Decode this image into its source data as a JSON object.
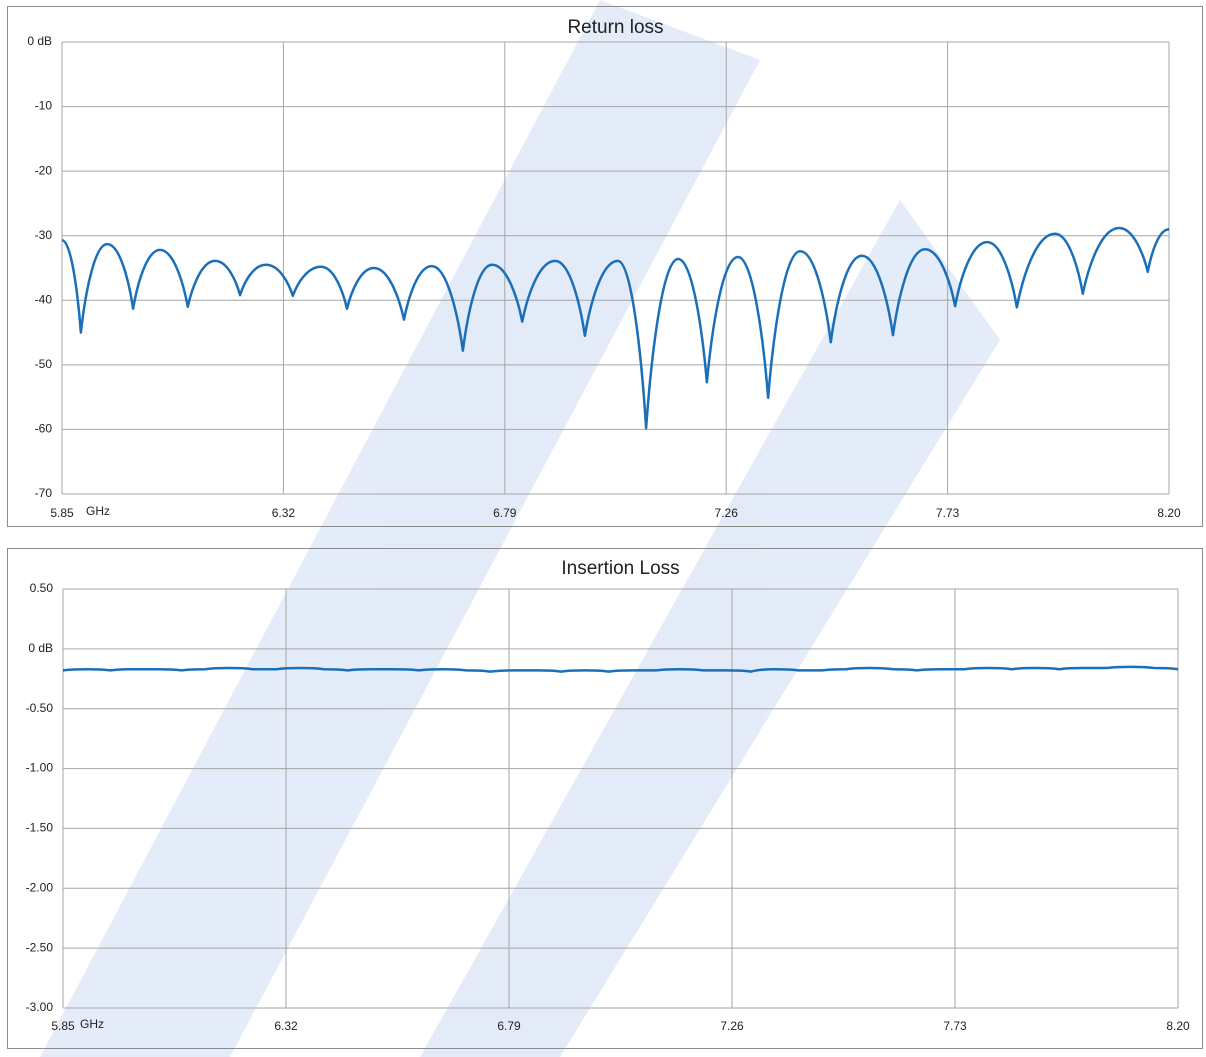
{
  "chart_data": [
    {
      "type": "line",
      "title": "Return loss",
      "x_label": "GHz",
      "color": "#1a6fb8",
      "grid": true,
      "xlim": [
        5.85,
        8.2
      ],
      "xticks": [
        5.85,
        6.32,
        6.79,
        7.26,
        7.73,
        {
          "value": 8.2,
          "label": "8.20"
        }
      ],
      "ylim": [
        -70,
        0
      ],
      "yticks": [
        {
          "value": 0,
          "label": "0 dB"
        },
        -10,
        -20,
        -30,
        -40,
        -50,
        -60,
        -70
      ],
      "x": [
        5.85,
        5.89,
        5.946,
        6.001,
        6.058,
        6.117,
        6.175,
        6.228,
        6.283,
        6.34,
        6.4,
        6.455,
        6.512,
        6.576,
        6.635,
        6.701,
        6.763,
        6.827,
        6.897,
        6.96,
        7.03,
        7.09,
        7.158,
        7.219,
        7.285,
        7.349,
        7.417,
        7.482,
        7.548,
        7.614,
        7.682,
        7.746,
        7.814,
        7.877,
        7.958,
        8.017,
        8.094,
        8.155,
        8.2
      ],
      "values": [
        -30.7,
        -45,
        -31.3,
        -41.3,
        -32.2,
        -41,
        -33.9,
        -39.2,
        -34.5,
        -39.3,
        -34.8,
        -41.3,
        -35,
        -43,
        -34.7,
        -47.8,
        -34.5,
        -43.3,
        -33.9,
        -45.5,
        -33.9,
        -59.8,
        -33.6,
        -52.7,
        -33.3,
        -55.1,
        -32.4,
        -46.5,
        -33.1,
        -45.4,
        -32.1,
        -40.9,
        -31,
        -41.1,
        -29.7,
        -39,
        -28.8,
        -35.6,
        -29
      ]
    },
    {
      "type": "line",
      "title": "Insertion Loss",
      "x_label": "GHz",
      "color": "#1a6fb8",
      "grid": true,
      "xlim": [
        5.85,
        8.2
      ],
      "xticks": [
        5.85,
        6.32,
        6.79,
        7.26,
        7.73,
        {
          "value": 8.2,
          "label": "8.20"
        }
      ],
      "ylim": [
        -3,
        0.5
      ],
      "yticks": [
        {
          "value": 0.5,
          "label": "0.50"
        },
        {
          "value": 0,
          "label": "0 dB"
        },
        {
          "value": -0.5,
          "label": "-0.50"
        },
        {
          "value": -1,
          "label": "-1.00"
        },
        {
          "value": -1.5,
          "label": "-1.50"
        },
        {
          "value": -2,
          "label": "-2.00"
        },
        {
          "value": -2.5,
          "label": "-2.50"
        },
        {
          "value": -3,
          "label": "-3.00"
        }
      ],
      "x": [
        5.85,
        5.9,
        5.95,
        6,
        6.05,
        6.1,
        6.15,
        6.2,
        6.25,
        6.3,
        6.35,
        6.4,
        6.45,
        6.5,
        6.55,
        6.6,
        6.65,
        6.7,
        6.75,
        6.8,
        6.85,
        6.9,
        6.95,
        7,
        7.05,
        7.1,
        7.15,
        7.2,
        7.25,
        7.3,
        7.35,
        7.4,
        7.45,
        7.5,
        7.55,
        7.6,
        7.65,
        7.7,
        7.75,
        7.8,
        7.85,
        7.9,
        7.95,
        8,
        8.05,
        8.1,
        8.15,
        8.2
      ],
      "values": [
        -0.18,
        -0.17,
        -0.18,
        -0.17,
        -0.17,
        -0.18,
        -0.17,
        -0.16,
        -0.17,
        -0.17,
        -0.16,
        -0.17,
        -0.18,
        -0.17,
        -0.17,
        -0.18,
        -0.17,
        -0.18,
        -0.19,
        -0.18,
        -0.18,
        -0.19,
        -0.18,
        -0.19,
        -0.18,
        -0.18,
        -0.17,
        -0.18,
        -0.18,
        -0.19,
        -0.17,
        -0.18,
        -0.18,
        -0.17,
        -0.16,
        -0.17,
        -0.18,
        -0.17,
        -0.17,
        -0.16,
        -0.17,
        -0.16,
        -0.17,
        -0.16,
        -0.16,
        -0.15,
        -0.16,
        -0.17
      ]
    }
  ]
}
